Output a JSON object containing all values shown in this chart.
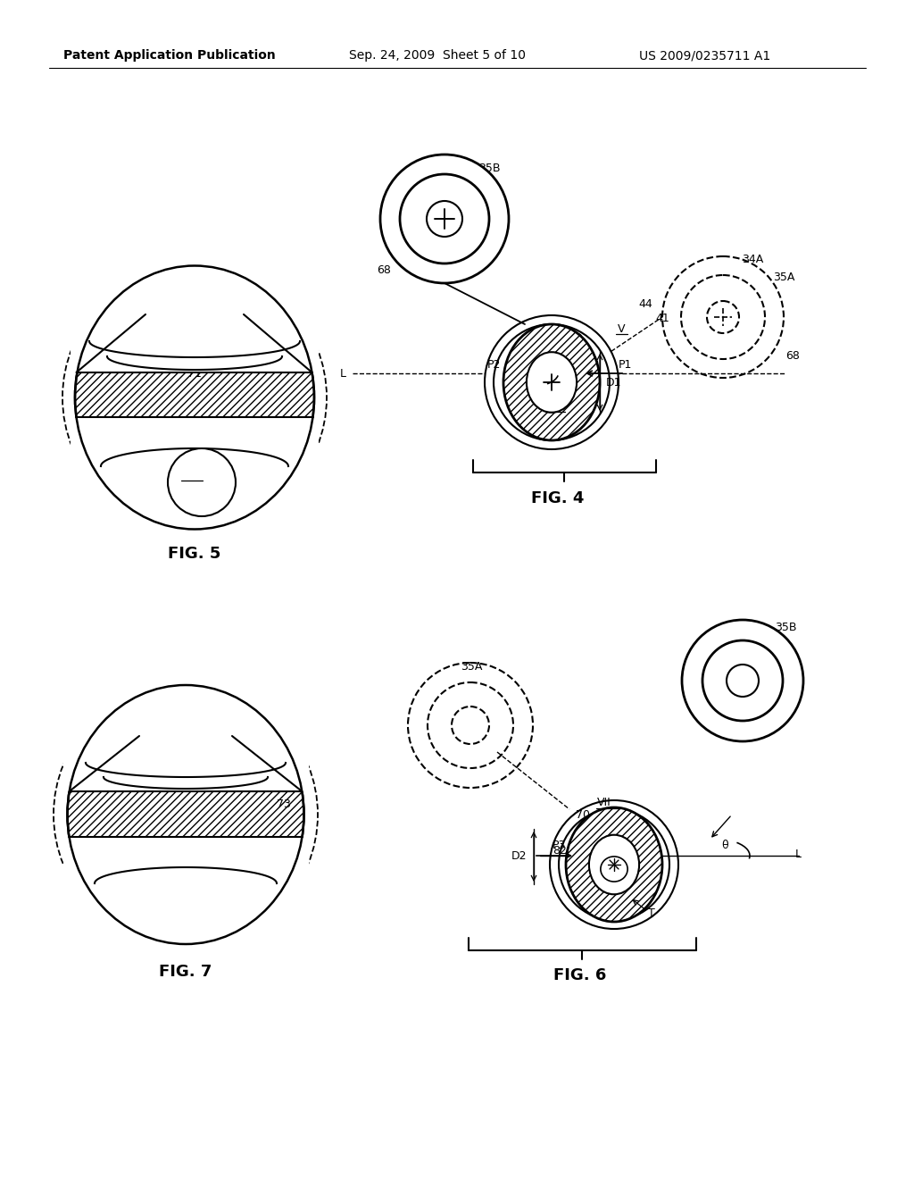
{
  "header_left": "Patent Application Publication",
  "header_center": "Sep. 24, 2009  Sheet 5 of 10",
  "header_right": "US 2009/0235711 A1",
  "fig4_label": "FIG. 4",
  "fig5_label": "FIG. 5",
  "fig6_label": "FIG. 6",
  "fig7_label": "FIG. 7",
  "bg_color": "#ffffff",
  "line_color": "#000000"
}
